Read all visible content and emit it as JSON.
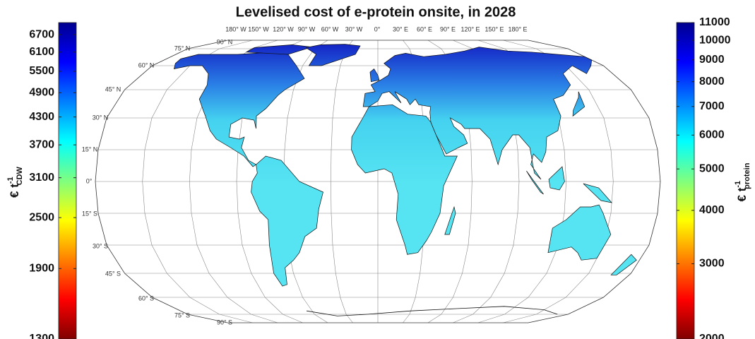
{
  "title": "Levelised cost of e-protein onsite, in 2028",
  "colorbars": [
    {
      "label": "€ t",
      "label_sup": "-1",
      "label_sub": "CDW",
      "scale": "log",
      "colormap": "jet",
      "ylim": [
        1300,
        7150
      ],
      "yticks": [
        1300,
        1900,
        2500,
        3100,
        3700,
        4300,
        4900,
        5500,
        6100,
        6700
      ]
    },
    {
      "label": "€ t",
      "label_sup": "-1",
      "label_sub": "protein",
      "scale": "log",
      "colormap": "jet",
      "ylim": [
        2000,
        11000
      ],
      "yticks": [
        2000,
        3000,
        4000,
        5000,
        6000,
        7000,
        8000,
        9000,
        10000,
        11000
      ]
    }
  ],
  "graticule": {
    "longitude_labels": [
      "180° W",
      "150° W",
      "120° W",
      "90° W",
      "60° W",
      "30° W",
      "0°",
      "30° E",
      "60° E",
      "90° E",
      "120° E",
      "150° E",
      "180° E"
    ],
    "latitude_labels": [
      "90° N",
      "75° N",
      "60° N",
      "45° N",
      "30° N",
      "15° N",
      "0°",
      "15° S",
      "30° S",
      "45° S",
      "60° S",
      "75° S",
      "90° S"
    ]
  }
}
